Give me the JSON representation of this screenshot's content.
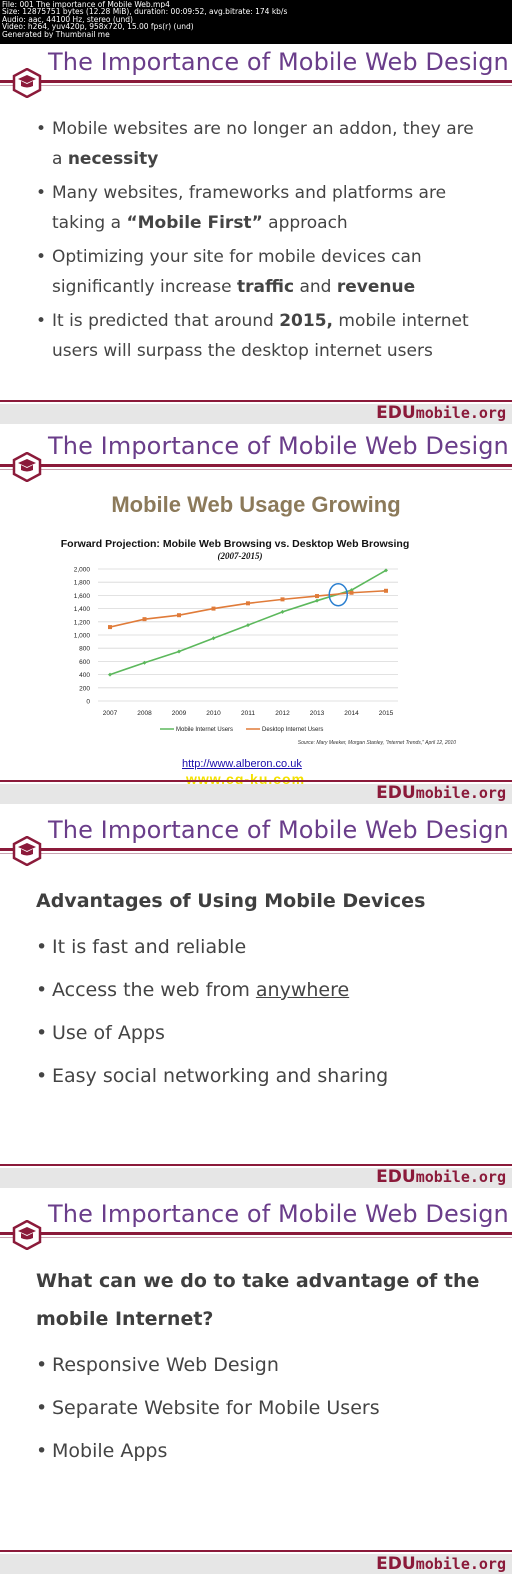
{
  "file_info": [
    "File: 001 The importance of Mobile Web.mp4",
    "Size: 12875751 bytes (12.28 MiB), duration: 00:09:52, avg.bitrate: 174 kb/s",
    "Audio: aac, 44100 Hz, stereo (und)",
    "Video: h264, yuv420p, 958x720, 15.00 fps(r) (und)",
    "Generated by Thumbnail me"
  ],
  "slide_title": "The Importance of Mobile Web Design",
  "brand": {
    "edu": "EDU",
    "mobile": "mobile.org"
  },
  "colors": {
    "title": "#6a3d8a",
    "accent": "#8b1a3a",
    "mobile_series": "#5cb85c",
    "desktop_series": "#e07b39"
  },
  "slide1": {
    "bullets": [
      {
        "pre": "Mobile websites are no longer an addon, they are a ",
        "b1": "necessity",
        "mid": "",
        "b2": ""
      },
      {
        "pre": "Many websites, frameworks and platforms are taking a ",
        "b1": "“Mobile First”",
        "mid": " approach",
        "b2": ""
      },
      {
        "pre": "Optimizing your site for mobile devices can significantly increase ",
        "b1": "traffic",
        "mid": " and ",
        "b2": "revenue"
      },
      {
        "pre": " It is predicted that around ",
        "b1": "2015,",
        "mid": " mobile internet users will surpass the desktop internet users",
        "b2": ""
      }
    ]
  },
  "slide2": {
    "link": "http://www.alberon.co.uk",
    "watermark": "www.cg-ku.com"
  },
  "chart_data": {
    "type": "line",
    "title": "Mobile Web Usage Growing",
    "subtitle": "Forward Projection: Mobile Web Browsing vs. Desktop Web Browsing",
    "period": "(2007-2015)",
    "x": [
      "2007",
      "2008",
      "2009",
      "2010",
      "2011",
      "2012",
      "2013",
      "2014",
      "2015"
    ],
    "y_ticks": [
      "0",
      "200",
      "400",
      "600",
      "800",
      "1,000",
      "1,200",
      "1,400",
      "1,600",
      "1,800",
      "2,000"
    ],
    "ylim": [
      0,
      2000
    ],
    "grid": true,
    "legend_position": "bottom",
    "series": [
      {
        "name": "Mobile Internet Users",
        "values": [
          400,
          580,
          750,
          950,
          1150,
          1350,
          1520,
          1680,
          1980
        ]
      },
      {
        "name": "Desktop Internet Users",
        "values": [
          1120,
          1240,
          1300,
          1400,
          1480,
          1540,
          1590,
          1640,
          1670
        ]
      }
    ],
    "source": "Source: Mary Meeker, Morgan Stanley, \"Internet Trends,\" April 12, 2010"
  },
  "slide3": {
    "heading": "Advantages of Using Mobile Devices",
    "bullets": [
      "It is fast and reliable",
      "Access the web from ",
      "Use of Apps",
      "Easy social networking and sharing"
    ],
    "underlined": "anywhere"
  },
  "slide4": {
    "heading": "What can we do to take advantage of the mobile Internet?",
    "bullets": [
      "Responsive Web Design",
      "Separate Website for Mobile Users",
      "Mobile Apps"
    ]
  }
}
